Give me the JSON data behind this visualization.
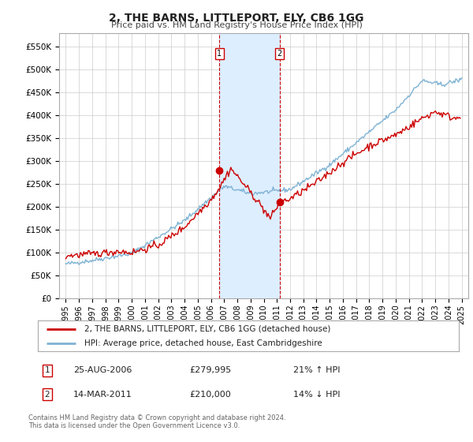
{
  "title": "2, THE BARNS, LITTLEPORT, ELY, CB6 1GG",
  "subtitle": "Price paid vs. HM Land Registry's House Price Index (HPI)",
  "legend_line1": "2, THE BARNS, LITTLEPORT, ELY, CB6 1GG (detached house)",
  "legend_line2": "HPI: Average price, detached house, East Cambridgeshire",
  "annotation1_date": "25-AUG-2006",
  "annotation1_price": "£279,995",
  "annotation1_hpi": "21% ↑ HPI",
  "annotation2_date": "14-MAR-2011",
  "annotation2_price": "£210,000",
  "annotation2_hpi": "14% ↓ HPI",
  "footnote1": "Contains HM Land Registry data © Crown copyright and database right 2024.",
  "footnote2": "This data is licensed under the Open Government Licence v3.0.",
  "sale1_x": 2006.65,
  "sale1_y": 279995,
  "sale2_x": 2011.2,
  "sale2_y": 210000,
  "vline1_x": 2006.65,
  "vline2_x": 2011.2,
  "shade_x1": 2006.65,
  "shade_x2": 2011.2,
  "red_line_color": "#cc0000",
  "blue_line_color": "#7fb3d3",
  "shade_color": "#ddeeff",
  "vline_color": "#cc0000",
  "background_color": "#ffffff",
  "grid_color": "#cccccc",
  "yticks": [
    0,
    50000,
    100000,
    150000,
    200000,
    250000,
    300000,
    350000,
    400000,
    450000,
    500000,
    550000
  ],
  "ylim": [
    0,
    580000
  ],
  "xlim_low": 1994.5,
  "xlim_high": 2025.5
}
